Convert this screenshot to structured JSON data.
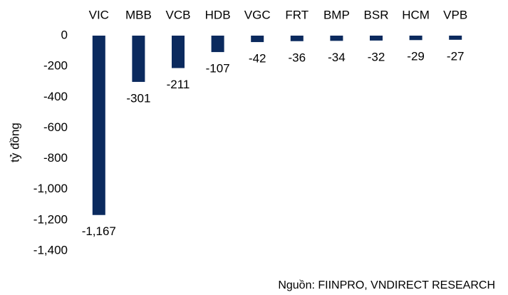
{
  "chart_data": {
    "type": "bar",
    "y_label": "tỷ đồng",
    "source": "Nguồn:  FIINPRO, VNDIRECT RESEARCH",
    "categories": [
      "VIC",
      "MBB",
      "VCB",
      "HDB",
      "VGC",
      "FRT",
      "BMP",
      "BSR",
      "HCM",
      "VPB"
    ],
    "values": [
      -1167,
      -301,
      -211,
      -107,
      -42,
      -36,
      -34,
      -32,
      -29,
      -27
    ],
    "value_labels": [
      "-1,167",
      "-301",
      "-211",
      "-107",
      "-42",
      "-36",
      "-34",
      "-32",
      "-29",
      "-27"
    ],
    "color": "#0b2a5e",
    "ylim": [
      -1400,
      0
    ],
    "yticks": [
      0,
      -200,
      -400,
      -600,
      -800,
      {
        "value": -1000,
        "label": "-1,000"
      },
      {
        "value": -1200,
        "label": "-1,200"
      },
      {
        "value": -1400,
        "label": "-1,400"
      }
    ],
    "grid": false
  }
}
